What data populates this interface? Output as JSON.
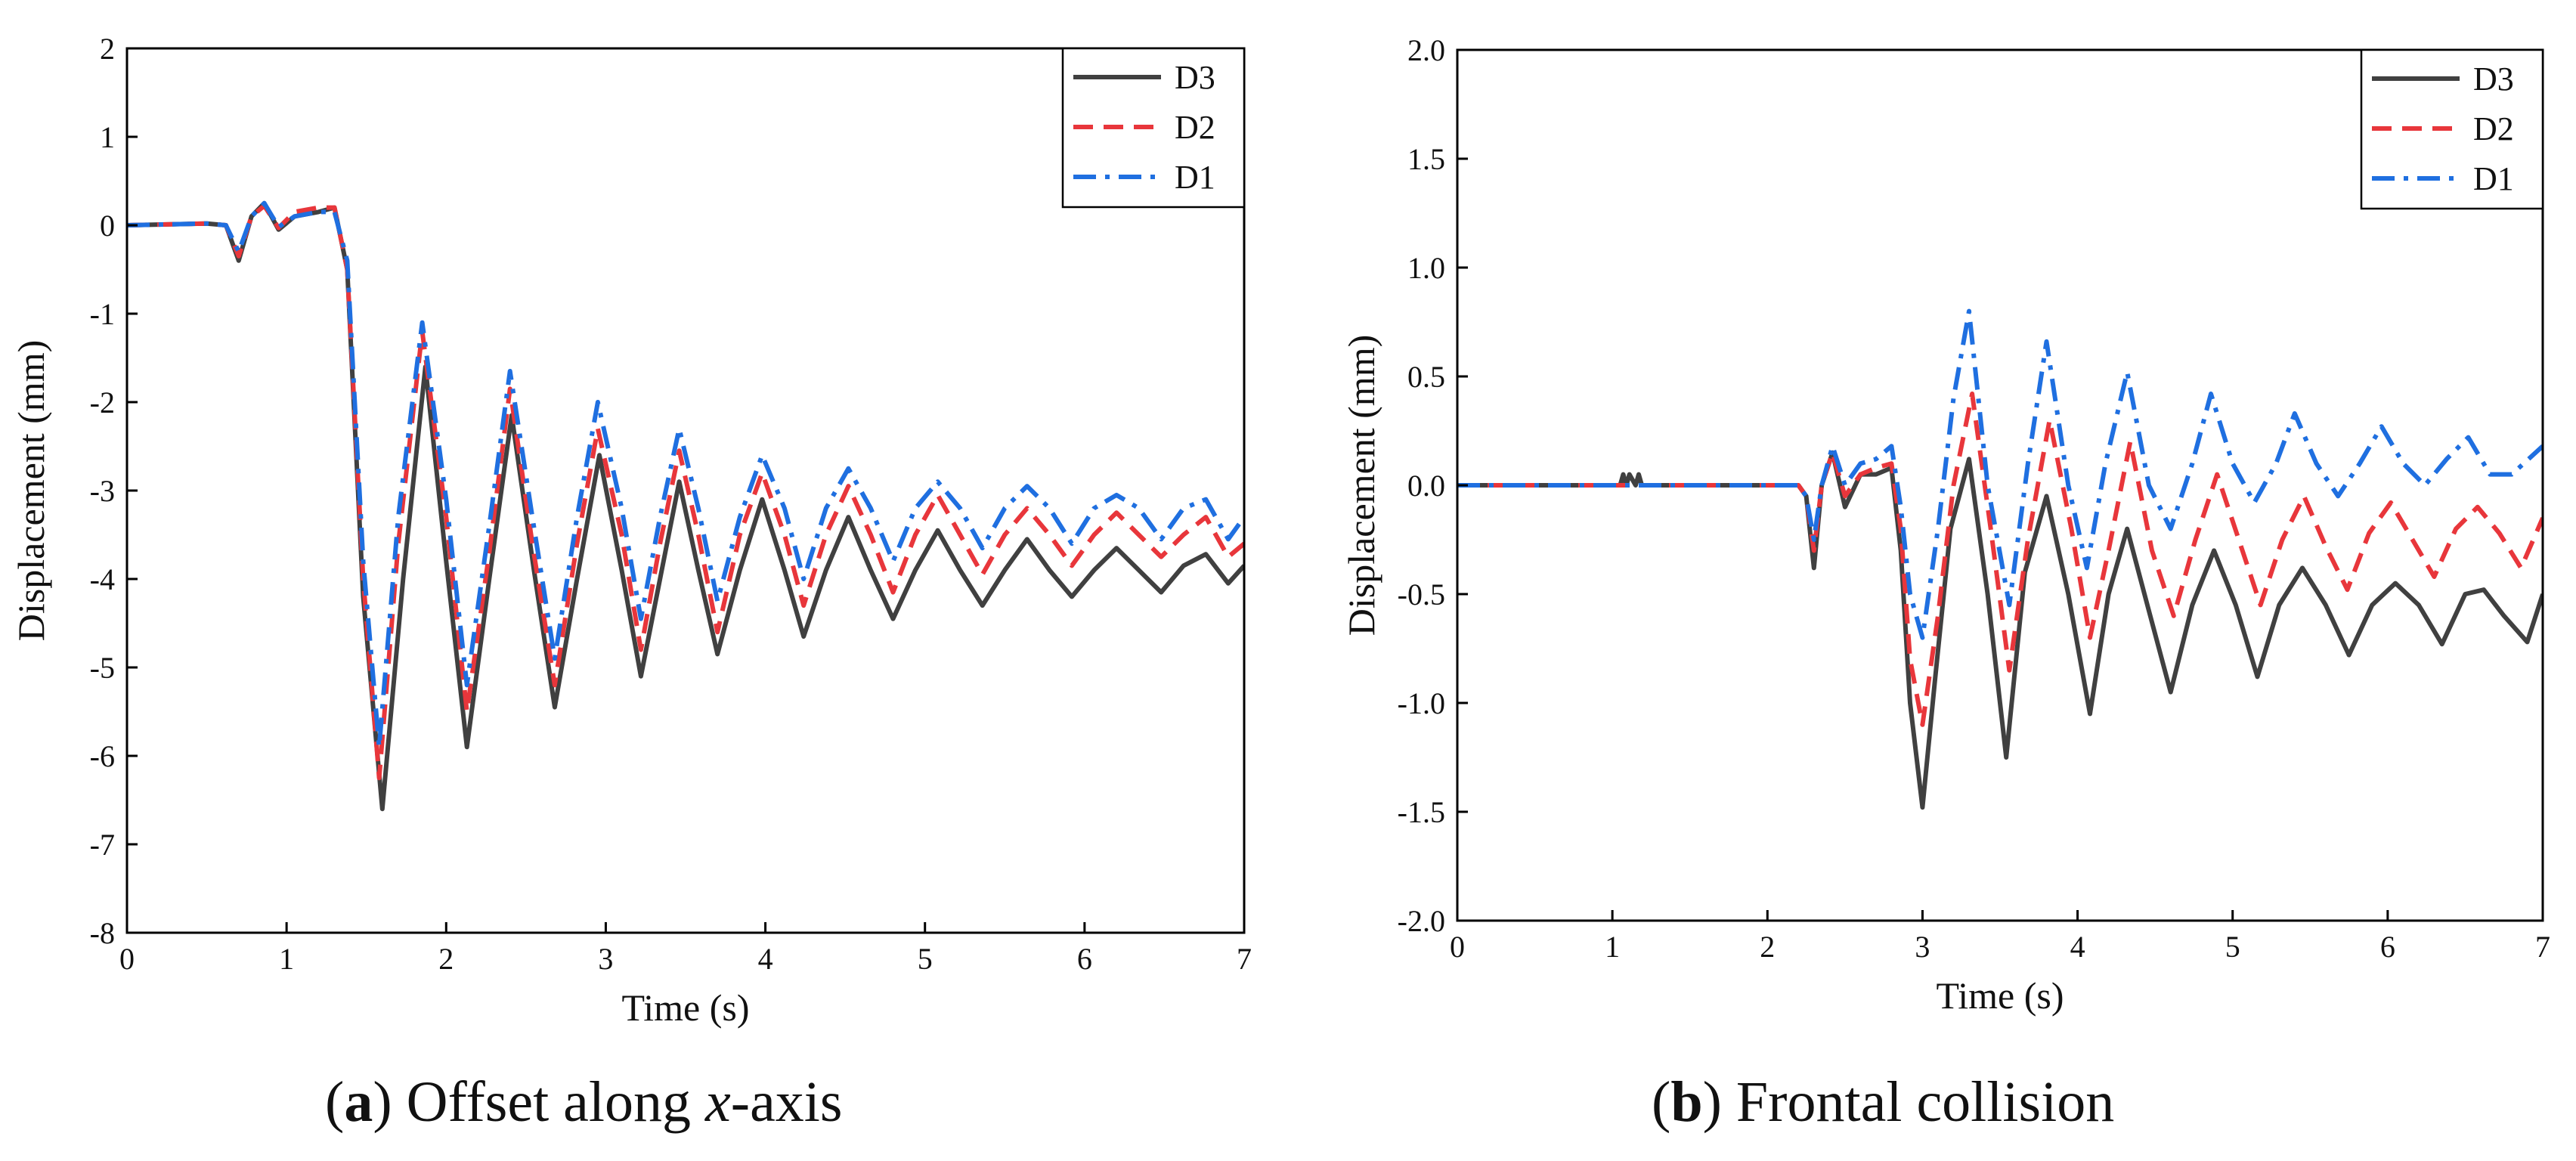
{
  "colors": {
    "D3": "#404040",
    "D2": "#e8363b",
    "D1": "#1f6fe0"
  },
  "chart_data": [
    {
      "type": "line",
      "panel": "a",
      "caption_letter": "a",
      "caption_pre": "Offset along ",
      "caption_italic": "x",
      "caption_post": "-axis",
      "xlabel": "Time (s)",
      "ylabel": "Displacement (mm)",
      "xlim": [
        0,
        7
      ],
      "ylim": [
        -8,
        2
      ],
      "xticks": [
        0,
        1,
        2,
        3,
        4,
        5,
        6,
        7
      ],
      "yticks": [
        2,
        1,
        0,
        -1,
        -2,
        -3,
        -4,
        -5,
        -6,
        -7,
        -8
      ],
      "ytick_labels": [
        "2",
        "1",
        "0",
        "-1",
        "-2",
        "-3",
        "-4",
        "-5",
        "-6",
        "-7",
        "-8"
      ],
      "legend_position": "top-right",
      "series": [
        {
          "name": "D3",
          "style": "solid",
          "x": [
            0,
            0.5,
            0.62,
            0.7,
            0.78,
            0.86,
            0.95,
            1.05,
            1.2,
            1.3,
            1.38,
            1.48,
            1.6,
            1.73,
            1.87,
            2.0,
            2.13,
            2.27,
            2.41,
            2.55,
            2.68,
            2.82,
            2.96,
            3.1,
            3.22,
            3.34,
            3.46,
            3.58,
            3.7,
            3.84,
            3.98,
            4.12,
            4.24,
            4.38,
            4.52,
            4.66,
            4.8,
            4.94,
            5.08,
            5.22,
            5.36,
            5.5,
            5.64,
            5.78,
            5.92,
            6.06,
            6.2,
            6.34,
            6.48,
            6.62,
            6.76,
            6.9,
            7.0
          ],
          "y": [
            0,
            0.02,
            0.0,
            -0.4,
            0.1,
            0.25,
            -0.05,
            0.1,
            0.15,
            0.2,
            -0.5,
            -4.2,
            -6.6,
            -4.0,
            -1.6,
            -3.8,
            -5.9,
            -4.0,
            -2.15,
            -3.9,
            -5.45,
            -4.0,
            -2.6,
            -3.9,
            -5.1,
            -4.0,
            -2.9,
            -3.9,
            -4.85,
            -3.9,
            -3.1,
            -3.9,
            -4.65,
            -3.9,
            -3.3,
            -3.9,
            -4.45,
            -3.9,
            -3.45,
            -3.9,
            -4.3,
            -3.9,
            -3.55,
            -3.9,
            -4.2,
            -3.9,
            -3.65,
            -3.9,
            -4.15,
            -3.85,
            -3.72,
            -4.05,
            -3.85
          ]
        },
        {
          "name": "D2",
          "style": "dashed",
          "x": [
            0,
            0.5,
            0.62,
            0.7,
            0.78,
            0.86,
            0.95,
            1.05,
            1.2,
            1.3,
            1.38,
            1.48,
            1.58,
            1.7,
            1.85,
            2.0,
            2.13,
            2.27,
            2.4,
            2.54,
            2.68,
            2.82,
            2.95,
            3.1,
            3.22,
            3.34,
            3.46,
            3.58,
            3.7,
            3.84,
            3.98,
            4.12,
            4.24,
            4.38,
            4.52,
            4.66,
            4.8,
            4.94,
            5.08,
            5.22,
            5.36,
            5.5,
            5.64,
            5.78,
            5.92,
            6.06,
            6.2,
            6.34,
            6.48,
            6.62,
            6.76,
            6.9,
            7.0
          ],
          "y": [
            0,
            0.02,
            0.0,
            -0.35,
            0.1,
            0.22,
            -0.03,
            0.15,
            0.2,
            0.2,
            -0.5,
            -4.0,
            -6.25,
            -3.6,
            -1.2,
            -3.3,
            -5.5,
            -3.7,
            -1.85,
            -3.6,
            -5.2,
            -3.6,
            -2.3,
            -3.5,
            -4.8,
            -3.6,
            -2.55,
            -3.5,
            -4.6,
            -3.5,
            -2.8,
            -3.5,
            -4.3,
            -3.5,
            -2.95,
            -3.5,
            -4.15,
            -3.5,
            -3.05,
            -3.5,
            -3.95,
            -3.5,
            -3.2,
            -3.5,
            -3.85,
            -3.5,
            -3.25,
            -3.5,
            -3.75,
            -3.5,
            -3.3,
            -3.75,
            -3.6
          ]
        },
        {
          "name": "D1",
          "style": "dashdot",
          "x": [
            0,
            0.5,
            0.62,
            0.7,
            0.78,
            0.86,
            0.95,
            1.05,
            1.2,
            1.3,
            1.38,
            1.48,
            1.58,
            1.7,
            1.85,
            2.0,
            2.13,
            2.27,
            2.4,
            2.54,
            2.68,
            2.82,
            2.95,
            3.1,
            3.22,
            3.34,
            3.46,
            3.58,
            3.7,
            3.84,
            3.98,
            4.12,
            4.24,
            4.38,
            4.52,
            4.66,
            4.8,
            4.94,
            5.08,
            5.22,
            5.36,
            5.5,
            5.64,
            5.78,
            5.92,
            6.06,
            6.2,
            6.34,
            6.48,
            6.62,
            6.76,
            6.9,
            7.0
          ],
          "y": [
            0,
            0.02,
            0.0,
            -0.3,
            0.1,
            0.25,
            -0.02,
            0.1,
            0.15,
            0.15,
            -0.4,
            -3.8,
            -5.9,
            -3.3,
            -1.1,
            -3.1,
            -5.2,
            -3.4,
            -1.65,
            -3.3,
            -4.9,
            -3.3,
            -2.0,
            -3.2,
            -4.45,
            -3.3,
            -2.3,
            -3.2,
            -4.25,
            -3.3,
            -2.6,
            -3.2,
            -4.0,
            -3.2,
            -2.75,
            -3.2,
            -3.8,
            -3.2,
            -2.9,
            -3.2,
            -3.65,
            -3.2,
            -2.95,
            -3.2,
            -3.6,
            -3.2,
            -3.05,
            -3.2,
            -3.55,
            -3.2,
            -3.1,
            -3.55,
            -3.3
          ]
        }
      ]
    },
    {
      "type": "line",
      "panel": "b",
      "caption_letter": "b",
      "caption_pre": "Frontal collision",
      "caption_italic": "",
      "caption_post": "",
      "xlabel": "Time (s)",
      "ylabel": "Displacement (mm)",
      "xlim": [
        0,
        7
      ],
      "ylim": [
        -2.0,
        2.0
      ],
      "xticks": [
        0,
        1,
        2,
        3,
        4,
        5,
        6,
        7
      ],
      "yticks": [
        2.0,
        1.5,
        1.0,
        0.5,
        0.0,
        -0.5,
        -1.0,
        -1.5,
        -2.0
      ],
      "ytick_labels": [
        "2.0",
        "1.5",
        "1.0",
        "0.5",
        "0.0",
        "-0.5",
        "-1.0",
        "-1.5",
        "-2.0"
      ],
      "legend_position": "top-right",
      "series": [
        {
          "name": "D3",
          "style": "solid",
          "x": [
            0,
            1.05,
            1.07,
            1.09,
            1.11,
            1.15,
            1.17,
            1.19,
            1.21,
            2.2,
            2.25,
            2.3,
            2.35,
            2.42,
            2.5,
            2.6,
            2.7,
            2.8,
            2.86,
            2.92,
            3.0,
            3.08,
            3.18,
            3.3,
            3.42,
            3.54,
            3.66,
            3.8,
            3.94,
            4.08,
            4.2,
            4.32,
            4.45,
            4.6,
            4.74,
            4.88,
            5.02,
            5.16,
            5.3,
            5.45,
            5.6,
            5.75,
            5.9,
            6.05,
            6.2,
            6.35,
            6.5,
            6.62,
            6.75,
            6.9,
            7.0
          ],
          "y": [
            0,
            0,
            0.05,
            0,
            0.05,
            0,
            0.05,
            0,
            0,
            0,
            -0.05,
            -0.38,
            0.0,
            0.15,
            -0.1,
            0.05,
            0.05,
            0.08,
            -0.3,
            -1.0,
            -1.48,
            -0.9,
            -0.2,
            0.12,
            -0.5,
            -1.25,
            -0.4,
            -0.05,
            -0.5,
            -1.05,
            -0.5,
            -0.2,
            -0.55,
            -0.95,
            -0.55,
            -0.3,
            -0.55,
            -0.88,
            -0.55,
            -0.38,
            -0.55,
            -0.78,
            -0.55,
            -0.45,
            -0.55,
            -0.73,
            -0.5,
            -0.48,
            -0.6,
            -0.72,
            -0.5
          ]
        },
        {
          "name": "D2",
          "style": "dashed",
          "x": [
            0,
            2.2,
            2.25,
            2.3,
            2.35,
            2.42,
            2.5,
            2.6,
            2.7,
            2.8,
            2.86,
            2.92,
            3.0,
            3.1,
            3.2,
            3.32,
            3.44,
            3.56,
            3.68,
            3.82,
            3.96,
            4.08,
            4.2,
            4.34,
            4.48,
            4.62,
            4.76,
            4.9,
            5.04,
            5.18,
            5.32,
            5.46,
            5.6,
            5.74,
            5.88,
            6.02,
            6.16,
            6.3,
            6.44,
            6.58,
            6.72,
            6.86,
            7.0
          ],
          "y": [
            0,
            0,
            -0.05,
            -0.3,
            0.0,
            0.15,
            -0.05,
            0.05,
            0.08,
            0.1,
            -0.2,
            -0.8,
            -1.1,
            -0.6,
            0.0,
            0.42,
            -0.2,
            -0.85,
            -0.25,
            0.3,
            -0.2,
            -0.7,
            -0.3,
            0.2,
            -0.3,
            -0.6,
            -0.25,
            0.05,
            -0.25,
            -0.55,
            -0.25,
            -0.05,
            -0.28,
            -0.48,
            -0.22,
            -0.08,
            -0.25,
            -0.42,
            -0.2,
            -0.1,
            -0.22,
            -0.38,
            -0.15
          ]
        },
        {
          "name": "D1",
          "style": "dashdot",
          "x": [
            0,
            2.2,
            2.25,
            2.3,
            2.35,
            2.42,
            2.5,
            2.6,
            2.7,
            2.8,
            2.86,
            2.92,
            3.0,
            3.1,
            3.2,
            3.3,
            3.42,
            3.56,
            3.68,
            3.8,
            3.94,
            4.06,
            4.18,
            4.32,
            4.46,
            4.6,
            4.74,
            4.86,
            5.0,
            5.14,
            5.28,
            5.4,
            5.54,
            5.68,
            5.82,
            5.96,
            6.1,
            6.24,
            6.38,
            6.52,
            6.66,
            6.8,
            7.0
          ],
          "y": [
            0,
            0,
            -0.05,
            -0.25,
            0.0,
            0.18,
            0.0,
            0.1,
            0.12,
            0.18,
            -0.1,
            -0.5,
            -0.7,
            -0.2,
            0.4,
            0.8,
            0.0,
            -0.55,
            0.1,
            0.66,
            0.0,
            -0.38,
            0.1,
            0.52,
            0.0,
            -0.2,
            0.1,
            0.42,
            0.1,
            -0.08,
            0.1,
            0.33,
            0.1,
            -0.05,
            0.1,
            0.27,
            0.1,
            0.0,
            0.12,
            0.22,
            0.05,
            0.05,
            0.18
          ]
        }
      ]
    }
  ]
}
